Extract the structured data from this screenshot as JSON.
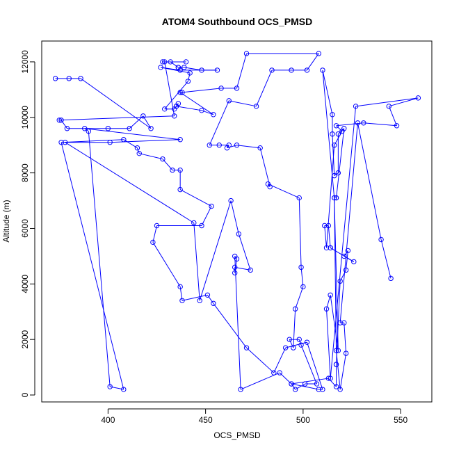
{
  "chart_data": {
    "type": "line",
    "title": "ATOM4 Southbound OCS_PMSD",
    "xlabel": "OCS_PMSD",
    "ylabel": "Altitude (m)",
    "xlim": [
      366,
      566
    ],
    "ylim": [
      -250,
      12750
    ],
    "xticks": [
      400,
      450,
      500,
      550
    ],
    "yticks": [
      0,
      2000,
      4000,
      6000,
      8000,
      10000,
      12000
    ],
    "markers": "open-circle",
    "grid": false,
    "legend": "none",
    "colors": {
      "series": "#0000ff",
      "axes": "#000000",
      "background": "#ffffff"
    },
    "series": [
      {
        "points": [
          [
            373,
            11400
          ],
          [
            380,
            11400
          ],
          [
            386,
            11400
          ],
          [
            422,
            9600
          ],
          [
            418,
            10050
          ],
          [
            411,
            9600
          ],
          [
            400,
            9600
          ],
          [
            379,
            9600
          ],
          [
            376,
            9900
          ],
          [
            375,
            9900
          ],
          [
            434,
            10050
          ],
          [
            429,
            12000
          ],
          [
            428,
            12000
          ],
          [
            440,
            12000
          ],
          [
            432,
            12000
          ],
          [
            436,
            11800
          ],
          [
            436,
            11800
          ],
          [
            439,
            11800
          ],
          [
            448,
            11700
          ],
          [
            456,
            11700
          ],
          [
            437,
            11700
          ],
          [
            427,
            11800
          ],
          [
            442,
            11600
          ],
          [
            441,
            11300
          ],
          [
            429,
            10300
          ],
          [
            434,
            10300
          ],
          [
            436,
            10500
          ],
          [
            435,
            10400
          ],
          [
            435,
            10400
          ],
          [
            448,
            10250
          ],
          [
            454,
            10100
          ],
          [
            437,
            10900
          ],
          [
            438,
            10900
          ],
          [
            458,
            11050
          ],
          [
            466,
            11050
          ],
          [
            471,
            12300
          ],
          [
            508,
            12300
          ],
          [
            502,
            11700
          ],
          [
            494,
            11700
          ],
          [
            484,
            11700
          ],
          [
            476,
            10400
          ],
          [
            462,
            10600
          ],
          [
            452,
            9000
          ],
          [
            457,
            9000
          ],
          [
            462,
            9000
          ],
          [
            461,
            8900
          ],
          [
            466,
            9000
          ],
          [
            478,
            8900
          ],
          [
            483,
            7500
          ],
          [
            482,
            7600
          ],
          [
            498,
            7100
          ],
          [
            499,
            4600
          ],
          [
            500,
            3900
          ],
          [
            496,
            3100
          ],
          [
            495,
            1700
          ],
          [
            493,
            2000
          ],
          [
            498,
            2000
          ],
          [
            499,
            1800
          ],
          [
            507,
            400
          ],
          [
            501,
            400
          ],
          [
            496,
            200
          ],
          [
            494,
            400
          ],
          [
            508,
            200
          ],
          [
            510,
            200
          ],
          [
            502,
            1900
          ],
          [
            491,
            1700
          ],
          [
            485,
            800
          ],
          [
            471,
            1700
          ],
          [
            454,
            3300
          ],
          [
            451,
            3600
          ],
          [
            438,
            3400
          ],
          [
            437,
            3900
          ],
          [
            423,
            5500
          ],
          [
            425,
            6100
          ],
          [
            448,
            6100
          ],
          [
            453,
            6800
          ],
          [
            437,
            7400
          ],
          [
            437,
            8100
          ],
          [
            433,
            8100
          ],
          [
            428,
            8500
          ],
          [
            416,
            8700
          ],
          [
            415,
            8900
          ],
          [
            408,
            9200
          ],
          [
            376,
            9100
          ],
          [
            408,
            200
          ],
          [
            401,
            300
          ],
          [
            390,
            9500
          ],
          [
            388,
            9600
          ],
          [
            437,
            9200
          ],
          [
            401,
            9100
          ],
          [
            378,
            9100
          ],
          [
            444,
            6200
          ],
          [
            447,
            3400
          ],
          [
            463,
            7000
          ],
          [
            467,
            5800
          ],
          [
            473,
            4500
          ],
          [
            465,
            4600
          ],
          [
            465,
            4400
          ],
          [
            466,
            4900
          ],
          [
            465,
            5000
          ],
          [
            468,
            200
          ],
          [
            488,
            800
          ],
          [
            494,
            400
          ],
          [
            513,
            600
          ],
          [
            517,
            300
          ],
          [
            517,
            1100
          ],
          [
            517,
            1100
          ],
          [
            519,
            4100
          ],
          [
            522,
            4500
          ],
          [
            523,
            5200
          ],
          [
            521,
            5000
          ],
          [
            526,
            4800
          ],
          [
            514,
            5300
          ],
          [
            514,
            5300
          ],
          [
            513,
            6100
          ],
          [
            511,
            6100
          ],
          [
            512,
            5300
          ],
          [
            516,
            9000
          ],
          [
            520,
            9500
          ],
          [
            517,
            9700
          ],
          [
            531,
            9800
          ],
          [
            548,
            9700
          ],
          [
            544,
            10400
          ],
          [
            559,
            10700
          ],
          [
            527,
            10400
          ],
          [
            514,
            600
          ],
          [
            512,
            3100
          ],
          [
            514,
            3600
          ],
          [
            518,
            1600
          ],
          [
            516,
            7100
          ],
          [
            517,
            7100
          ],
          [
            517,
            7100
          ],
          [
            521,
            9600
          ],
          [
            518,
            9400
          ],
          [
            518,
            8000
          ],
          [
            516,
            7900
          ],
          [
            515,
            9400
          ],
          [
            515,
            10100
          ],
          [
            510,
            11700
          ],
          [
            516,
            7100
          ],
          [
            517,
            1600
          ],
          [
            519,
            200
          ],
          [
            522,
            1500
          ],
          [
            521,
            2600
          ],
          [
            519,
            2600
          ],
          [
            528,
            9800
          ],
          [
            540,
            5600
          ],
          [
            545,
            4200
          ]
        ]
      }
    ]
  }
}
